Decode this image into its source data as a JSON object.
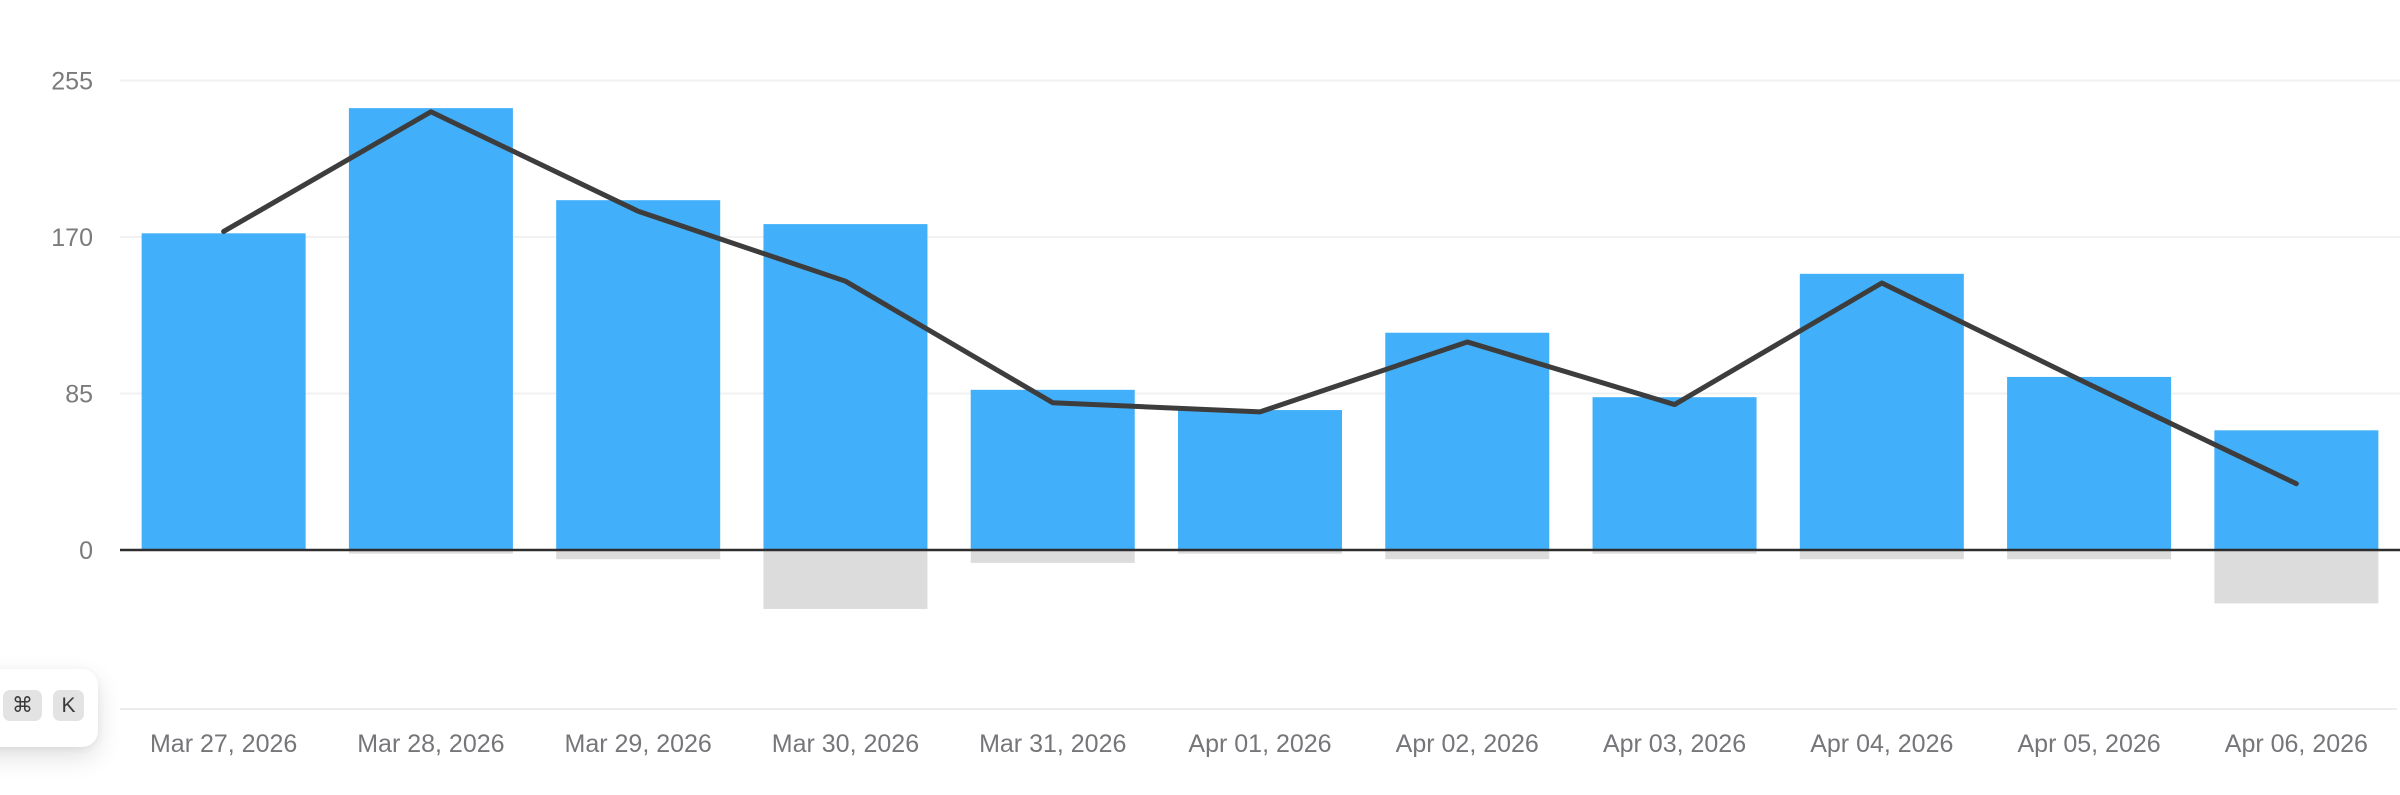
{
  "chart_data": {
    "type": "bar",
    "title": "",
    "xlabel": "",
    "ylabel": "",
    "categories": [
      "Mar 27, 2026",
      "Mar 28, 2026",
      "Mar 29, 2026",
      "Mar 30, 2026",
      "Mar 31, 2026",
      "Apr 01, 2026",
      "Apr 02, 2026",
      "Apr 03, 2026",
      "Apr 04, 2026",
      "Apr 05, 2026",
      "Apr 06, 2026"
    ],
    "series": [
      {
        "name": "primary-bars",
        "type": "bar",
        "color": "#42affa",
        "values": [
          172,
          240,
          190,
          177,
          87,
          76,
          118,
          83,
          150,
          94,
          65
        ]
      },
      {
        "name": "negative-bars",
        "type": "bar",
        "color": "#dcdcdc",
        "values": [
          0,
          -2,
          -5,
          -32,
          -7,
          -2,
          -5,
          -2,
          -5,
          -5,
          -29
        ]
      },
      {
        "name": "overlay-line",
        "type": "line",
        "color": "#3d3d3d",
        "values": [
          173,
          238,
          184,
          146,
          80,
          75,
          113,
          79,
          145,
          90,
          36
        ]
      }
    ],
    "y_ticks": [
      0,
      85,
      170,
      255
    ],
    "ylim": [
      -40,
      272
    ],
    "grid": "horizontal",
    "legend": "none"
  },
  "shortcut_hint": {
    "keys": [
      "⌘",
      "K"
    ]
  },
  "colors": {
    "bar": "#42affa",
    "negative_bar": "#dcdcdc",
    "line": "#3d3d3d",
    "gridline": "#f1f1f1",
    "axis_line": "#2e2e2e",
    "divider": "#ededeb",
    "y_tick_text": "#7b7b7b",
    "x_tick_text": "#76767a",
    "keycap_bg": "#e3e3e3",
    "keycap_text": "#3a3a3a"
  }
}
